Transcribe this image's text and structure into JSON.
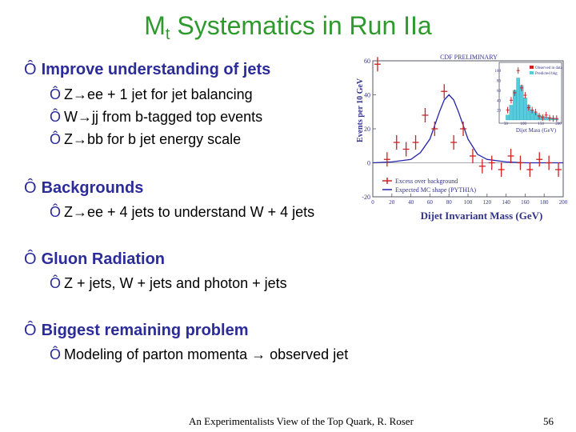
{
  "title": {
    "main": "M",
    "sub": "t",
    "rest": " Systematics in Run IIa"
  },
  "bullet_glyph": "Ô",
  "sections": [
    {
      "heading": "Improve understanding of jets",
      "items": [
        "Z→ee + 1 jet for jet balancing",
        "W→jj from b-tagged top events",
        "Z→bb for b jet energy scale"
      ]
    },
    {
      "heading": "Backgrounds",
      "items": [
        "Z→ee + 4 jets to understand W + 4 jets"
      ]
    },
    {
      "heading": "Gluon Radiation",
      "items": [
        "Z + jets, W + jets and photon + jets"
      ]
    },
    {
      "heading": "Biggest remaining problem",
      "items": [
        "Modeling of parton momenta → observed jet"
      ]
    }
  ],
  "footer": {
    "text": "An Experimentalists View of the Top Quark, R. Roser",
    "page": "56"
  },
  "plot": {
    "header": "CDF PRELIMINARY",
    "ylabel": "Events per 10 GeV",
    "xlabel": "Dijet Invariant Mass (GeV)",
    "yticks": [
      "60",
      "40",
      "20",
      "0",
      "-20"
    ],
    "xticks": [
      "0",
      "20",
      "40",
      "60",
      "80",
      "100",
      "120",
      "140",
      "160",
      "180",
      "200"
    ],
    "legend": [
      "Excess over background",
      "Expected MC shape (PYTHIA)"
    ],
    "inset": {
      "yticks": [
        "100",
        "80",
        "60",
        "40",
        "20"
      ],
      "xticks": [
        "50",
        "100",
        "150",
        "200"
      ],
      "xlabel": "Dijet Mass (GeV)",
      "legend": [
        "Observed in data",
        "Predicted bkg"
      ]
    },
    "colors": {
      "data": "#cc2222",
      "curve": "#2222aa",
      "inset_fill": "#55ccdd"
    }
  },
  "chart_data": {
    "type": "scatter",
    "title": "CDF PRELIMINARY",
    "xlabel": "Dijet Invariant Mass (GeV)",
    "ylabel": "Events per 10 GeV",
    "xlim": [
      0,
      200
    ],
    "ylim": [
      -20,
      60
    ],
    "series": [
      {
        "name": "Excess over background",
        "x": [
          5,
          15,
          25,
          35,
          45,
          55,
          65,
          75,
          85,
          95,
          105,
          115,
          125,
          135,
          145,
          155,
          165,
          175,
          185,
          195
        ],
        "y": [
          58,
          2,
          12,
          8,
          12,
          28,
          20,
          42,
          12,
          20,
          4,
          -2,
          0,
          -4,
          4,
          0,
          -4,
          2,
          0,
          -4
        ]
      },
      {
        "name": "Expected MC shape (PYTHIA)",
        "x": [
          0,
          20,
          40,
          50,
          60,
          70,
          75,
          80,
          85,
          90,
          100,
          110,
          120,
          140,
          160,
          200
        ],
        "y": [
          0,
          0.5,
          2,
          6,
          14,
          30,
          37,
          40,
          37,
          30,
          14,
          5,
          2,
          0.5,
          0,
          0
        ]
      }
    ]
  }
}
